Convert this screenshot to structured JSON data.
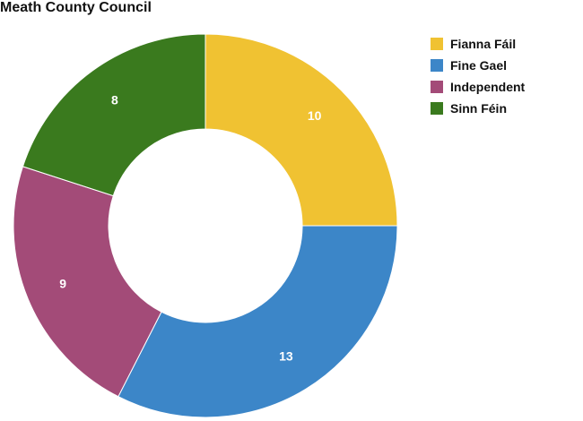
{
  "chart_data": {
    "type": "pie",
    "title": "Meath County Council",
    "donut": true,
    "legend_position": "top-right",
    "categories": [
      "Fianna Fáil",
      "Fine Gael",
      "Independent",
      "Sinn Féin"
    ],
    "values": [
      10,
      13,
      9,
      8
    ],
    "colors": [
      "#f0c232",
      "#3c86c8",
      "#a34b78",
      "#3a7a1e"
    ],
    "start_angle_deg": 0,
    "direction": "clockwise"
  }
}
